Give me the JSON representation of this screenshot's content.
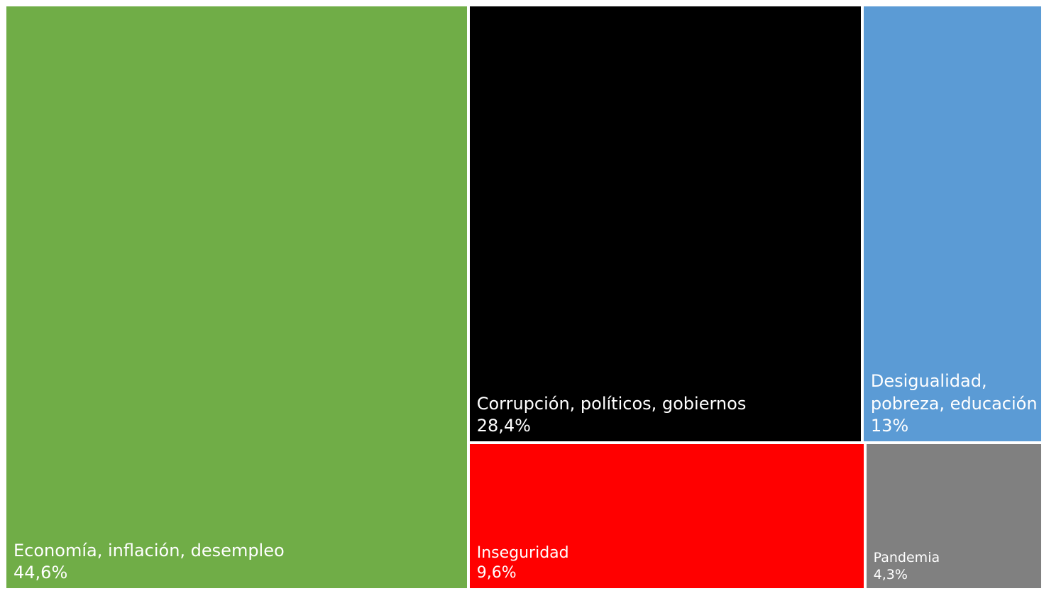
{
  "chart_data": {
    "type": "treemap",
    "title": "",
    "items": [
      {
        "label": "Economía, inflación, desempleo",
        "value": 44.6,
        "value_label": "44,6%",
        "color": "#70AD47"
      },
      {
        "label": "Corrupción, políticos, gobiernos",
        "value": 28.4,
        "value_label": "28,4%",
        "color": "#000000"
      },
      {
        "label": "Desigualidad,\npobreza, educación",
        "value": 13.0,
        "value_label": "13%",
        "color": "#5B9BD5"
      },
      {
        "label": "Inseguridad",
        "value": 9.6,
        "value_label": "9,6%",
        "color": "#FF0000"
      },
      {
        "label": "Pandemia",
        "value": 4.3,
        "value_label": "4,3%",
        "color": "#808080"
      }
    ]
  }
}
